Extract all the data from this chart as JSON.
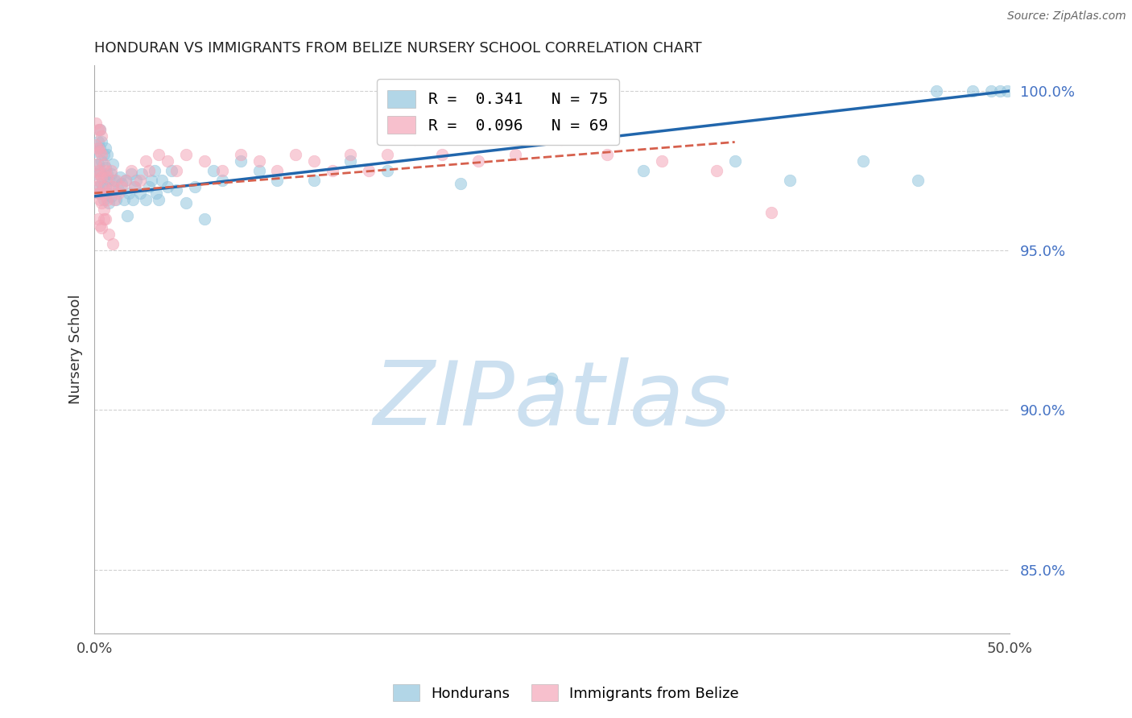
{
  "title": "HONDURAN VS IMMIGRANTS FROM BELIZE NURSERY SCHOOL CORRELATION CHART",
  "source": "Source: ZipAtlas.com",
  "ylabel": "Nursery School",
  "xlim": [
    0.0,
    0.5
  ],
  "ylim": [
    0.83,
    1.008
  ],
  "xticks": [
    0.0,
    0.1,
    0.2,
    0.3,
    0.4,
    0.5
  ],
  "xticklabels": [
    "0.0%",
    "",
    "",
    "",
    "",
    "50.0%"
  ],
  "yticks": [
    0.85,
    0.9,
    0.95,
    1.0
  ],
  "yticklabels": [
    "85.0%",
    "90.0%",
    "95.0%",
    "100.0%"
  ],
  "legend_line1": "R =  0.341   N = 75",
  "legend_line2": "R =  0.096   N = 69",
  "legend_label1": "Hondurans",
  "legend_label2": "Immigrants from Belize",
  "blue_color": "#92c5de",
  "pink_color": "#f4a6b8",
  "blue_line_color": "#2166ac",
  "pink_line_color": "#d6604d",
  "watermark_zip": "ZIP",
  "watermark_atlas": "atlas",
  "watermark_color": "#cce0f0",
  "blue_points_x": [
    0.001,
    0.001,
    0.002,
    0.002,
    0.002,
    0.003,
    0.003,
    0.003,
    0.003,
    0.004,
    0.004,
    0.004,
    0.005,
    0.005,
    0.005,
    0.006,
    0.006,
    0.006,
    0.007,
    0.007,
    0.007,
    0.008,
    0.008,
    0.009,
    0.009,
    0.01,
    0.01,
    0.011,
    0.012,
    0.013,
    0.014,
    0.015,
    0.016,
    0.017,
    0.018,
    0.019,
    0.02,
    0.021,
    0.022,
    0.023,
    0.025,
    0.026,
    0.028,
    0.03,
    0.031,
    0.033,
    0.034,
    0.035,
    0.037,
    0.04,
    0.042,
    0.045,
    0.05,
    0.055,
    0.06,
    0.065,
    0.07,
    0.08,
    0.09,
    0.1,
    0.12,
    0.14,
    0.16,
    0.2,
    0.25,
    0.3,
    0.35,
    0.38,
    0.42,
    0.45,
    0.46,
    0.48,
    0.49,
    0.495,
    0.499
  ],
  "blue_points_y": [
    0.974,
    0.981,
    0.97,
    0.977,
    0.984,
    0.968,
    0.975,
    0.982,
    0.988,
    0.971,
    0.978,
    0.984,
    0.966,
    0.973,
    0.98,
    0.97,
    0.976,
    0.982,
    0.968,
    0.974,
    0.98,
    0.965,
    0.972,
    0.967,
    0.974,
    0.97,
    0.977,
    0.972,
    0.966,
    0.969,
    0.973,
    0.971,
    0.966,
    0.972,
    0.961,
    0.968,
    0.974,
    0.966,
    0.97,
    0.972,
    0.968,
    0.974,
    0.966,
    0.97,
    0.972,
    0.975,
    0.968,
    0.966,
    0.972,
    0.97,
    0.975,
    0.969,
    0.965,
    0.97,
    0.96,
    0.975,
    0.972,
    0.978,
    0.975,
    0.972,
    0.972,
    0.978,
    0.975,
    0.971,
    0.91,
    0.975,
    0.978,
    0.972,
    0.978,
    0.972,
    1.0,
    1.0,
    1.0,
    1.0,
    1.0
  ],
  "pink_points_x": [
    0.001,
    0.001,
    0.001,
    0.001,
    0.002,
    0.002,
    0.002,
    0.002,
    0.002,
    0.002,
    0.003,
    0.003,
    0.003,
    0.003,
    0.003,
    0.003,
    0.004,
    0.004,
    0.004,
    0.004,
    0.004,
    0.005,
    0.005,
    0.005,
    0.006,
    0.006,
    0.006,
    0.007,
    0.007,
    0.008,
    0.009,
    0.01,
    0.011,
    0.012,
    0.013,
    0.015,
    0.017,
    0.02,
    0.022,
    0.025,
    0.028,
    0.03,
    0.035,
    0.04,
    0.045,
    0.05,
    0.06,
    0.07,
    0.08,
    0.09,
    0.1,
    0.11,
    0.12,
    0.13,
    0.14,
    0.15,
    0.16,
    0.175,
    0.19,
    0.21,
    0.23,
    0.255,
    0.28,
    0.31,
    0.34,
    0.37,
    0.01,
    0.008,
    0.005
  ],
  "pink_points_y": [
    0.97,
    0.977,
    0.983,
    0.99,
    0.968,
    0.975,
    0.982,
    0.988,
    0.96,
    0.972,
    0.966,
    0.974,
    0.981,
    0.988,
    0.958,
    0.968,
    0.965,
    0.973,
    0.98,
    0.986,
    0.957,
    0.97,
    0.977,
    0.963,
    0.968,
    0.975,
    0.96,
    0.966,
    0.973,
    0.969,
    0.975,
    0.97,
    0.966,
    0.972,
    0.968,
    0.97,
    0.972,
    0.975,
    0.97,
    0.972,
    0.978,
    0.975,
    0.98,
    0.978,
    0.975,
    0.98,
    0.978,
    0.975,
    0.98,
    0.978,
    0.975,
    0.98,
    0.978,
    0.975,
    0.98,
    0.975,
    0.98,
    0.985,
    0.98,
    0.978,
    0.98,
    0.985,
    0.98,
    0.978,
    0.975,
    0.962,
    0.952,
    0.955,
    0.96
  ],
  "blue_trend_x0": 0.0,
  "blue_trend_y0": 0.967,
  "blue_trend_x1": 0.5,
  "blue_trend_y1": 1.0,
  "pink_trend_x0": 0.0,
  "pink_trend_y0": 0.968,
  "pink_trend_x1": 0.35,
  "pink_trend_y1": 0.984
}
